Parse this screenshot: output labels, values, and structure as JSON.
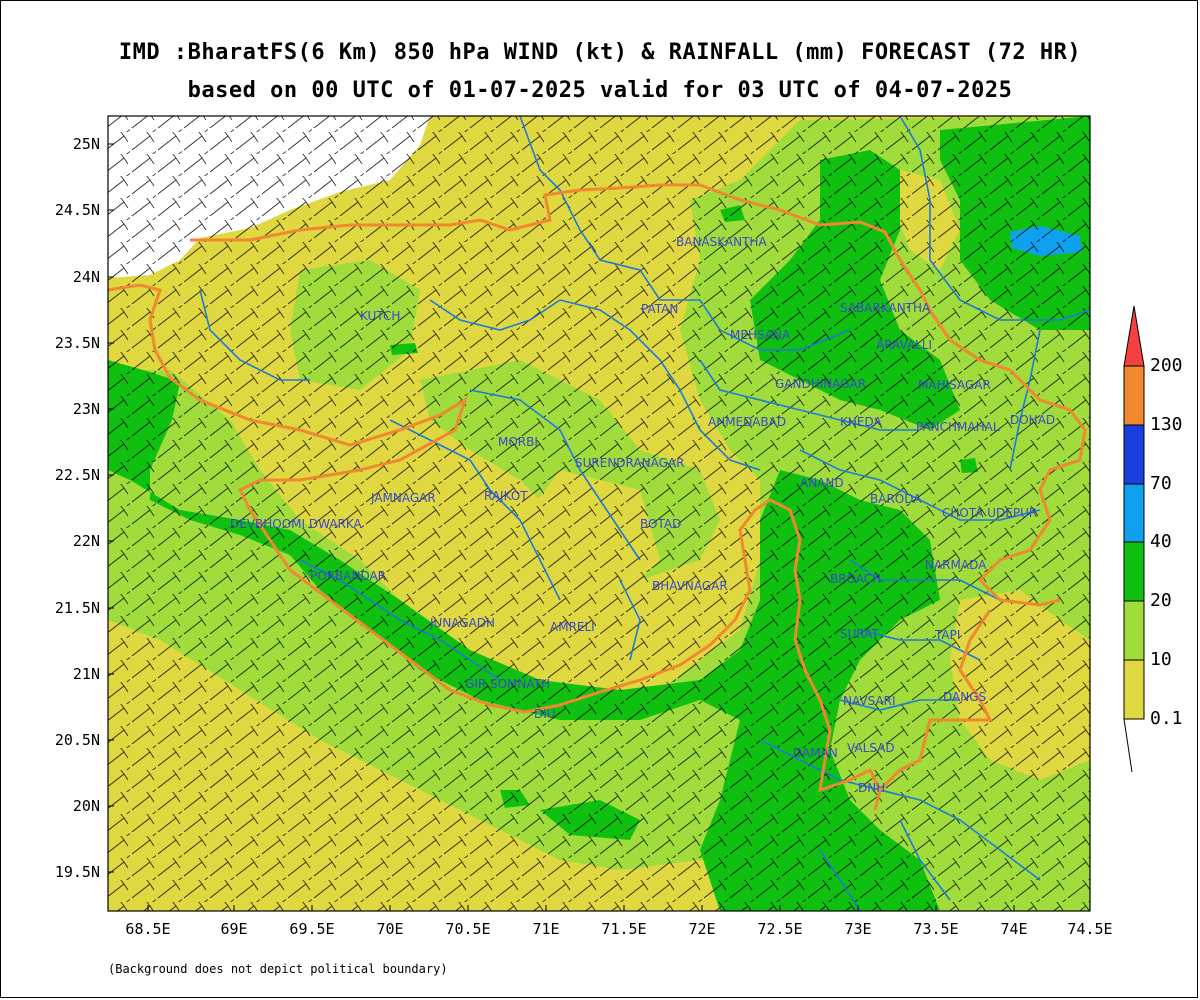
{
  "title_line1": "IMD :BharatFS(6 Km) 850 hPa WIND (kt) & RAINFALL (mm) FORECAST (72 HR)",
  "title_line2": "based on 00 UTC of 01-07-2025 valid for 03 UTC of 04-07-2025",
  "footnote": "(Background does not depict political boundary)",
  "x_ticks": [
    "68.5E",
    "69E",
    "69.5E",
    "70E",
    "70.5E",
    "71E",
    "71.5E",
    "72E",
    "72.5E",
    "73E",
    "73.5E",
    "74E",
    "74.5E"
  ],
  "y_ticks": [
    "25N",
    "24.5N",
    "24N",
    "23.5N",
    "23N",
    "22.5N",
    "22N",
    "21.5N",
    "21N",
    "20.5N",
    "20N",
    "19.5N"
  ],
  "colorbar": {
    "labels": [
      "200",
      "130",
      "70",
      "40",
      "20",
      "10",
      "0.1"
    ],
    "colors": [
      "#f44040",
      "#f08830",
      "#1a3ee0",
      "#10a0f0",
      "#10c010",
      "#a0dc3c",
      "#e0d840"
    ]
  },
  "districts": [
    "BANASKANTHA",
    "PATAN",
    "MEHSANA",
    "SABARKANTHA",
    "ARAVALLI",
    "GANDHINAGAR",
    "MAHISAGAR",
    "KUTCH",
    "AHMEDABAD",
    "KHEDA",
    "PANCHMAHAL",
    "DOHAD",
    "MORBI",
    "SURENDRANAGAR",
    "ANAND",
    "JAMNAGAR",
    "RAJKOT",
    "BARODA",
    "DEVBHOOMI DWARKA",
    "BOTAD",
    "CHOTA UDEPUR",
    "PORBANDAR",
    "BHAVNAGAR",
    "BROACH",
    "NARMADA",
    "JUNAGADH",
    "AMRELI",
    "SURAT",
    "TAPI",
    "GIR SOMNATH",
    "DIU",
    "NAVSARI",
    "DANGS",
    "DAMAN",
    "VALSAD",
    "DNH"
  ]
}
